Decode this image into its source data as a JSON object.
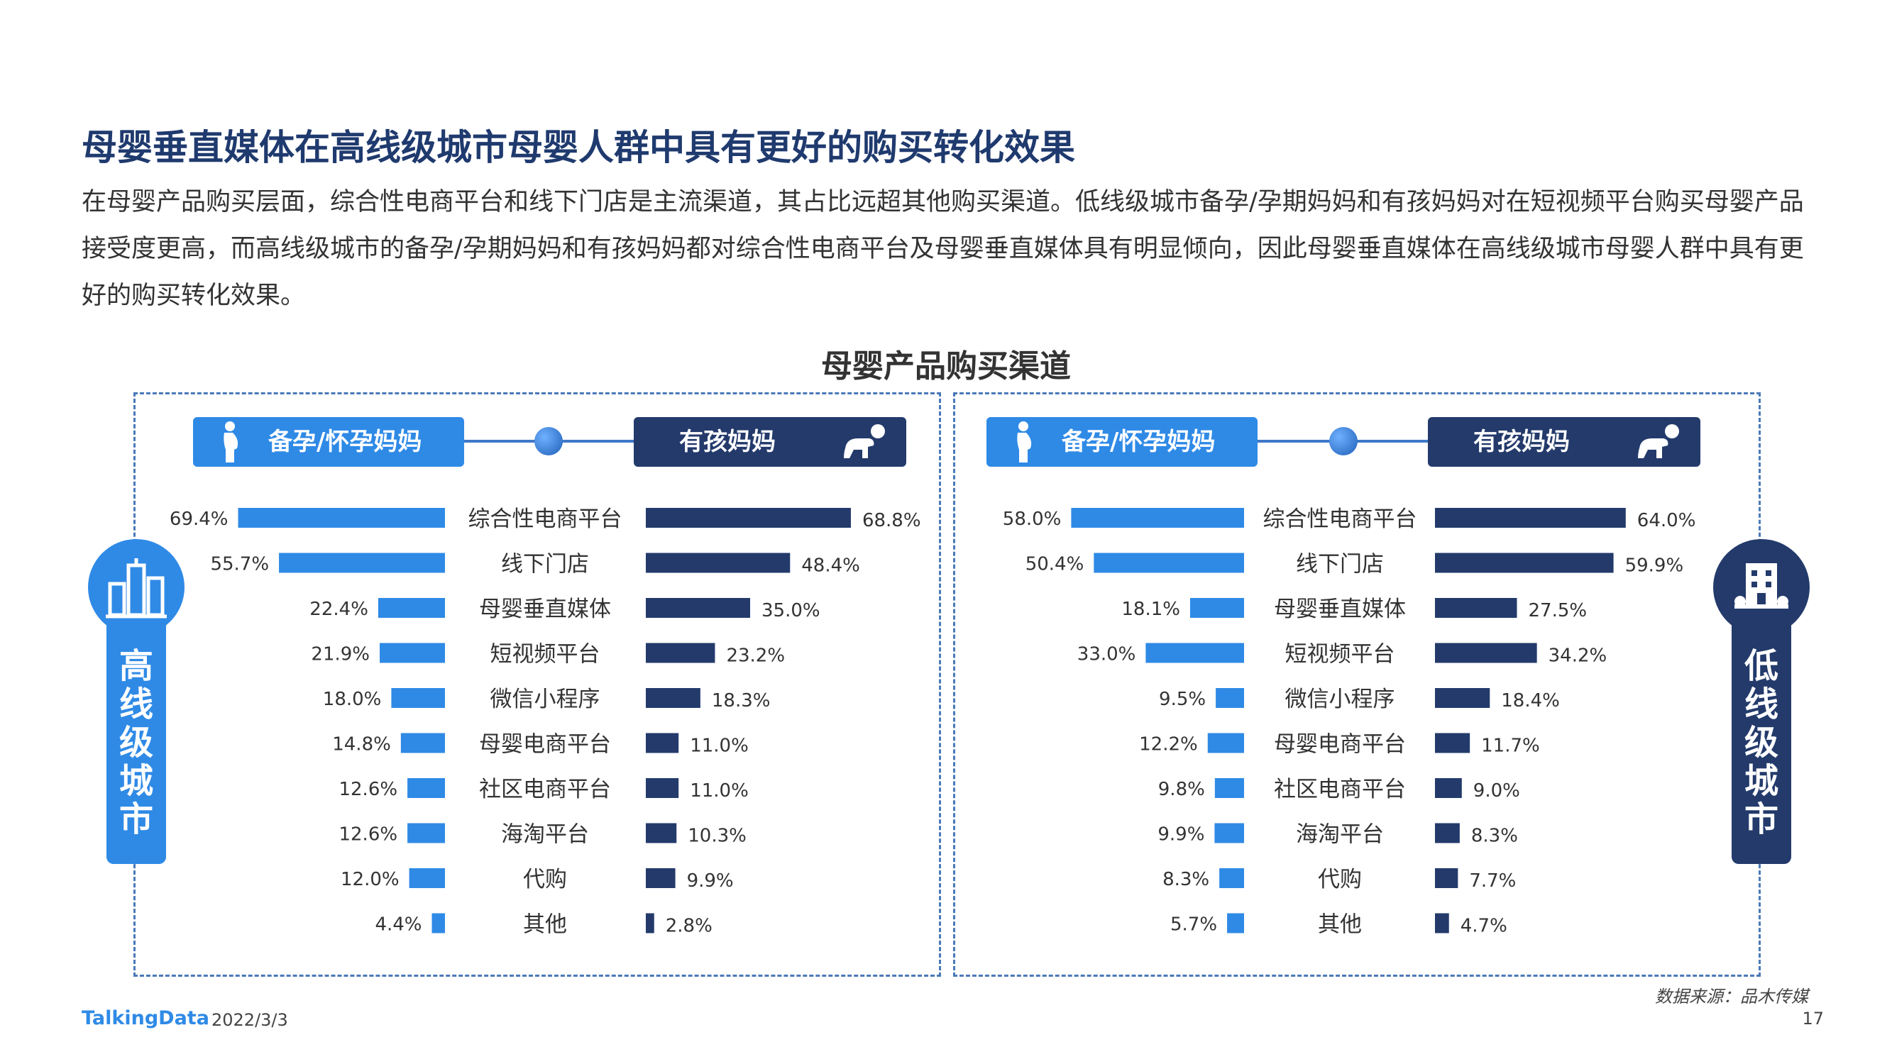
{
  "page": {
    "title": "母婴垂直媒体在高线级城市母婴人群中具有更好的购买转化效果",
    "description": "在母婴产品购买层面，综合性电商平台和线下门店是主流渠道，其占比远超其他购买渠道。低线级城市备孕/孕期妈妈和有孩妈妈对在短视频平台购买母婴产品接受度更高，而高线级城市的备孕/孕期妈妈和有孩妈妈都对综合性电商平台及母婴垂直媒体具有明显倾向，因此母婴垂直媒体在高线级城市母婴人群中具有更好的购买转化效果。",
    "chart_title": "母婴产品购买渠道",
    "source": "数据来源：品木传媒",
    "footer_logo": "TalkingData",
    "footer_date": "2022/3/3",
    "page_number": "17"
  },
  "legend": {
    "pregnant": "备孕/怀孕妈妈",
    "with_child": "有孩妈妈"
  },
  "colors": {
    "pregnant": "#2f8ae6",
    "with_child": "#233a6b"
  },
  "cities": {
    "high": {
      "label": "高线级城市",
      "chars": [
        "高",
        "线",
        "级",
        "城",
        "市"
      ]
    },
    "low": {
      "label": "低线级城市",
      "chars": [
        "低",
        "线",
        "级",
        "城",
        "市"
      ]
    }
  },
  "chart_data": [
    {
      "type": "bar",
      "panel": "高线级城市",
      "categories": [
        "综合性电商平台",
        "线下门店",
        "母婴垂直媒体",
        "短视频平台",
        "微信小程序",
        "母婴电商平台",
        "社区电商平台",
        "海淘平台",
        "代购",
        "其他"
      ],
      "unit": "%",
      "series": [
        {
          "name": "备孕/怀孕妈妈",
          "values": [
            69.4,
            55.7,
            22.4,
            21.9,
            18.0,
            14.8,
            12.6,
            12.6,
            12.0,
            4.4
          ]
        },
        {
          "name": "有孩妈妈",
          "values": [
            68.8,
            48.4,
            35.0,
            23.2,
            18.3,
            11.0,
            11.0,
            10.3,
            9.9,
            2.8
          ]
        }
      ]
    },
    {
      "type": "bar",
      "panel": "低线级城市",
      "categories": [
        "综合性电商平台",
        "线下门店",
        "母婴垂直媒体",
        "短视频平台",
        "微信小程序",
        "母婴电商平台",
        "社区电商平台",
        "海淘平台",
        "代购",
        "其他"
      ],
      "unit": "%",
      "series": [
        {
          "name": "备孕/怀孕妈妈",
          "values": [
            58.0,
            50.4,
            18.1,
            33.0,
            9.5,
            12.2,
            9.8,
            9.9,
            8.3,
            5.7
          ]
        },
        {
          "name": "有孩妈妈",
          "values": [
            64.0,
            59.9,
            27.5,
            34.2,
            18.4,
            11.7,
            9.0,
            8.3,
            7.7,
            4.7
          ]
        }
      ]
    }
  ]
}
